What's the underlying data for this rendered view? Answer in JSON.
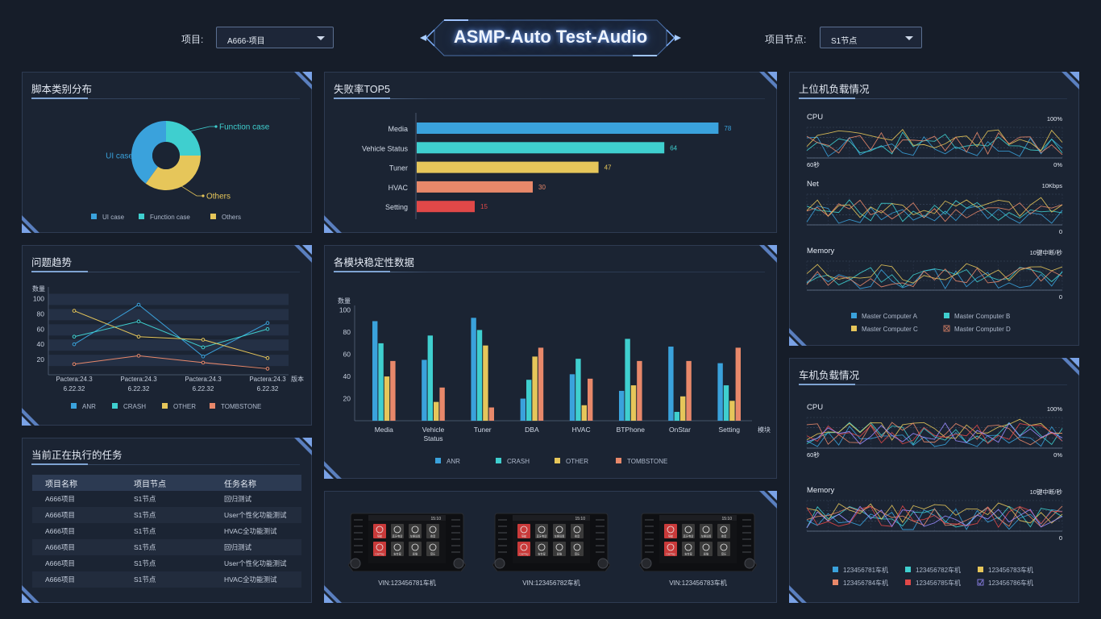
{
  "header": {
    "title": "ASMP-Auto Test-Audio",
    "project_label": "项目:",
    "project_value": "A666-项目",
    "node_label": "项目节点:",
    "node_value": "S1节点"
  },
  "script_dist": {
    "title": "脚本类别分布",
    "chart_data": {
      "type": "pie",
      "categories": [
        "UI case",
        "Function case",
        "Others"
      ],
      "values": [
        40,
        25,
        35
      ],
      "colors": [
        "#3aa2dc",
        "#3fcfcf",
        "#e6c65a"
      ],
      "legend": "bottom"
    }
  },
  "issue_trend": {
    "title": "问题趋势",
    "ylabel": "数量",
    "xlabel": "版本",
    "x_labels_l1": [
      "Pactera:24.3",
      "Pactera:24.3",
      "Pactera:24.3",
      "Pactera:24.3"
    ],
    "x_labels_l2": [
      "6.22.32",
      "6.22.32",
      "6.22.32",
      "6.22.32"
    ],
    "chart_data": {
      "type": "line",
      "ylim": [
        0,
        110
      ],
      "yticks": [
        20,
        40,
        60,
        80,
        100
      ],
      "series": [
        {
          "name": "ANR",
          "color": "#3aa2dc",
          "values": [
            40,
            92,
            24,
            68
          ]
        },
        {
          "name": "CRASH",
          "color": "#3fcfcf",
          "values": [
            50,
            70,
            36,
            60
          ]
        },
        {
          "name": "OTHER",
          "color": "#e6c65a",
          "values": [
            84,
            50,
            46,
            22
          ]
        },
        {
          "name": "TOMBSTONE",
          "color": "#e8886a",
          "values": [
            14,
            25,
            16,
            8
          ]
        }
      ],
      "legend": "bottom"
    }
  },
  "tasks": {
    "title": "当前正在执行的任务",
    "headers": [
      "项目名称",
      "项目节点",
      "任务名称"
    ],
    "rows": [
      [
        "A666项目",
        "S1节点",
        "回归测试"
      ],
      [
        "A666项目",
        "S1节点",
        "User个性化功能测试"
      ],
      [
        "A666项目",
        "S1节点",
        "HVAC全功能测试"
      ],
      [
        "A666项目",
        "S1节点",
        "回归测试"
      ],
      [
        "A666项目",
        "S1节点",
        "User个性化功能测试"
      ],
      [
        "A666项目",
        "S1节点",
        "HVAC全功能测试"
      ]
    ]
  },
  "fail_top5": {
    "title": "失败率TOP5",
    "chart_data": {
      "type": "bar",
      "orientation": "horizontal",
      "categories": [
        "Media",
        "Vehicle Status",
        "Tuner",
        "HVAC",
        "Setting"
      ],
      "values": [
        78,
        64,
        47,
        30,
        15
      ],
      "colors": [
        "#3aa2dc",
        "#3fcfcf",
        "#e6c65a",
        "#e8886a",
        "#e04848"
      ],
      "xlim": [
        0,
        80
      ]
    }
  },
  "stability": {
    "title": "各模块稳定性数据",
    "ylabel": "数量",
    "xlabel": "模块",
    "categories_l1": [
      "Media",
      "Vehicle",
      "Tuner",
      "DBA",
      "HVAC",
      "BTPhone",
      "OnStar",
      "Setting"
    ],
    "categories_l2": [
      "",
      "Status",
      "",
      "",
      "",
      "",
      "",
      ""
    ],
    "chart_data": {
      "type": "bar",
      "categories": [
        "Media",
        "Vehicle Status",
        "Tuner",
        "DBA",
        "HVAC",
        "BTPhone",
        "OnStar",
        "Setting"
      ],
      "ylim": [
        0,
        110
      ],
      "yticks": [
        20,
        40,
        60,
        80,
        100
      ],
      "series": [
        {
          "name": "ANR",
          "color": "#3aa2dc",
          "values": [
            90,
            55,
            93,
            20,
            42,
            27,
            67,
            52
          ]
        },
        {
          "name": "CRASH",
          "color": "#3fcfcf",
          "values": [
            70,
            77,
            82,
            37,
            56,
            74,
            8,
            32
          ]
        },
        {
          "name": "OTHER",
          "color": "#e6c65a",
          "values": [
            40,
            17,
            68,
            58,
            14,
            32,
            22,
            18
          ]
        },
        {
          "name": "TOMBSTONE",
          "color": "#e8886a",
          "values": [
            54,
            30,
            12,
            66,
            38,
            54,
            54,
            66
          ]
        }
      ],
      "legend": "bottom"
    }
  },
  "vehicles": {
    "items": [
      {
        "vin": "VIN:123456781车机"
      },
      {
        "vin": "VIN:123456782车机"
      },
      {
        "vin": "VIN:123456783车机"
      }
    ],
    "screen_time": "15:10",
    "app_labels": [
      "导航",
      "蓝牙电话",
      "车辆设置",
      "收音",
      "CarPlay",
      "安吉星",
      "影像",
      "音乐"
    ]
  },
  "host_load": {
    "title": "上位机负载情况",
    "charts": [
      {
        "label": "CPU",
        "max": "100%",
        "min_left": "60秒",
        "min_right": "0%"
      },
      {
        "label": "Net",
        "max": "10Kbps",
        "min_left": "",
        "min_right": "0"
      },
      {
        "label": "Memory",
        "max": "10键中断/秒",
        "min_left": "",
        "min_right": "0"
      }
    ],
    "legend": [
      "Master Computer A",
      "Master Computer B",
      "Master Computer C",
      "Master Computer D"
    ],
    "colors": [
      "#3aa2dc",
      "#3fcfcf",
      "#e6c65a",
      "#e8886a"
    ]
  },
  "car_load": {
    "title": "车机负载情况",
    "charts": [
      {
        "label": "CPU",
        "max": "100%",
        "min_left": "60秒",
        "min_right": "0%"
      },
      {
        "label": "Memory",
        "max": "10键中断/秒",
        "min_left": "",
        "min_right": "0"
      }
    ],
    "legend": [
      "123456781车机",
      "123456782车机",
      "123456783车机",
      "123456784车机",
      "123456785车机",
      "123456786车机"
    ],
    "colors": [
      "#3aa2dc",
      "#3fcfcf",
      "#e6c65a",
      "#e8886a",
      "#e04848",
      "#9b8cff"
    ]
  }
}
